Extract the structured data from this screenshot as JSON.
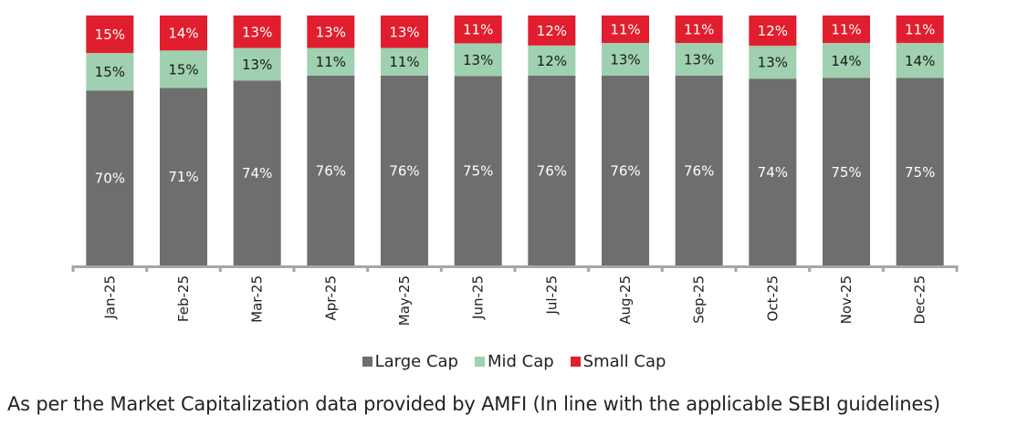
{
  "chart_data": {
    "type": "bar",
    "stacked": true,
    "title": "",
    "xlabel": "",
    "ylabel": "",
    "ylim": [
      0,
      100
    ],
    "grid": false,
    "legend_position": "bottom",
    "categories": [
      "Jan-25",
      "Feb-25",
      "Mar-25",
      "Apr-25",
      "May-25",
      "Jun-25",
      "Jul-25",
      "Aug-25",
      "Sep-25",
      "Oct-25",
      "Nov-25",
      "Dec-25"
    ],
    "series": [
      {
        "name": "Large Cap",
        "color": "#6e6e6e",
        "label_color": "#ffffff",
        "values": [
          70,
          71,
          74,
          76,
          76,
          75,
          76,
          76,
          76,
          74,
          75,
          75
        ]
      },
      {
        "name": "Mid Cap",
        "color": "#9fd0b0",
        "label_color": "#1a1a1a",
        "values": [
          15,
          15,
          13,
          11,
          11,
          13,
          12,
          13,
          13,
          13,
          14,
          14
        ]
      },
      {
        "name": "Small Cap",
        "color": "#e01e2e",
        "label_color": "#ffffff",
        "values": [
          15,
          14,
          13,
          13,
          13,
          11,
          12,
          11,
          11,
          12,
          11,
          11
        ]
      }
    ],
    "value_suffix": "%",
    "axis_color": "#a6a6a6"
  },
  "caption": "As per the Market Capitalization data provided by AMFI (In line with the applicable SEBI guidelines)"
}
